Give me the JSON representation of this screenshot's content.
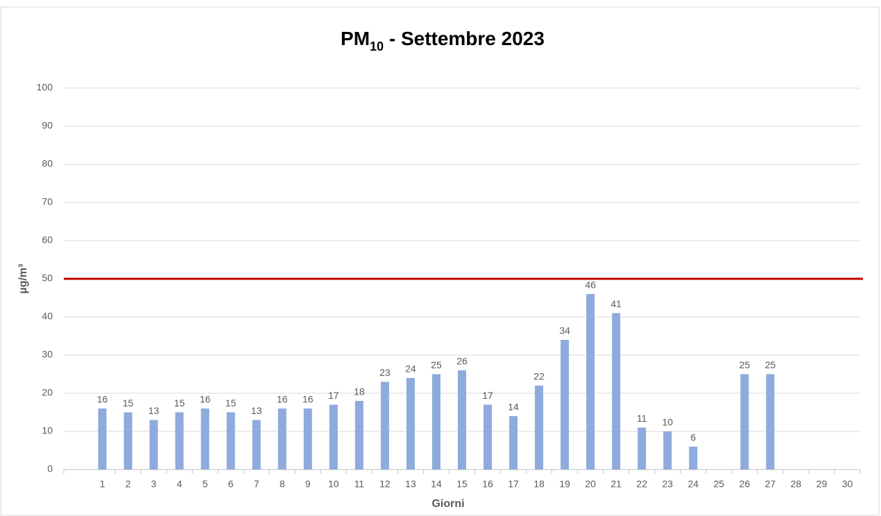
{
  "chart_data": {
    "type": "bar",
    "title_parts": [
      "PM",
      "10",
      " - Settembre 2023"
    ],
    "x_label": "Giorni",
    "y_label": "µg/m³",
    "categories": [
      "1",
      "2",
      "3",
      "4",
      "5",
      "6",
      "7",
      "8",
      "9",
      "10",
      "11",
      "12",
      "13",
      "14",
      "15",
      "16",
      "17",
      "18",
      "19",
      "20",
      "21",
      "22",
      "23",
      "24",
      "25",
      "26",
      "27",
      "28",
      "29",
      "30"
    ],
    "values": [
      16,
      15,
      13,
      15,
      16,
      15,
      13,
      16,
      16,
      17,
      18,
      23,
      24,
      25,
      26,
      17,
      14,
      22,
      34,
      46,
      41,
      11,
      10,
      6,
      null,
      25,
      25,
      null,
      null,
      null
    ],
    "color": "#8faadc",
    "limit": 50,
    "limit_color": "#c00000",
    "ylim": [
      0,
      100
    ],
    "yticks": [
      0,
      10,
      20,
      30,
      40,
      50,
      60,
      70,
      80,
      90,
      100
    ],
    "grid": true
  }
}
